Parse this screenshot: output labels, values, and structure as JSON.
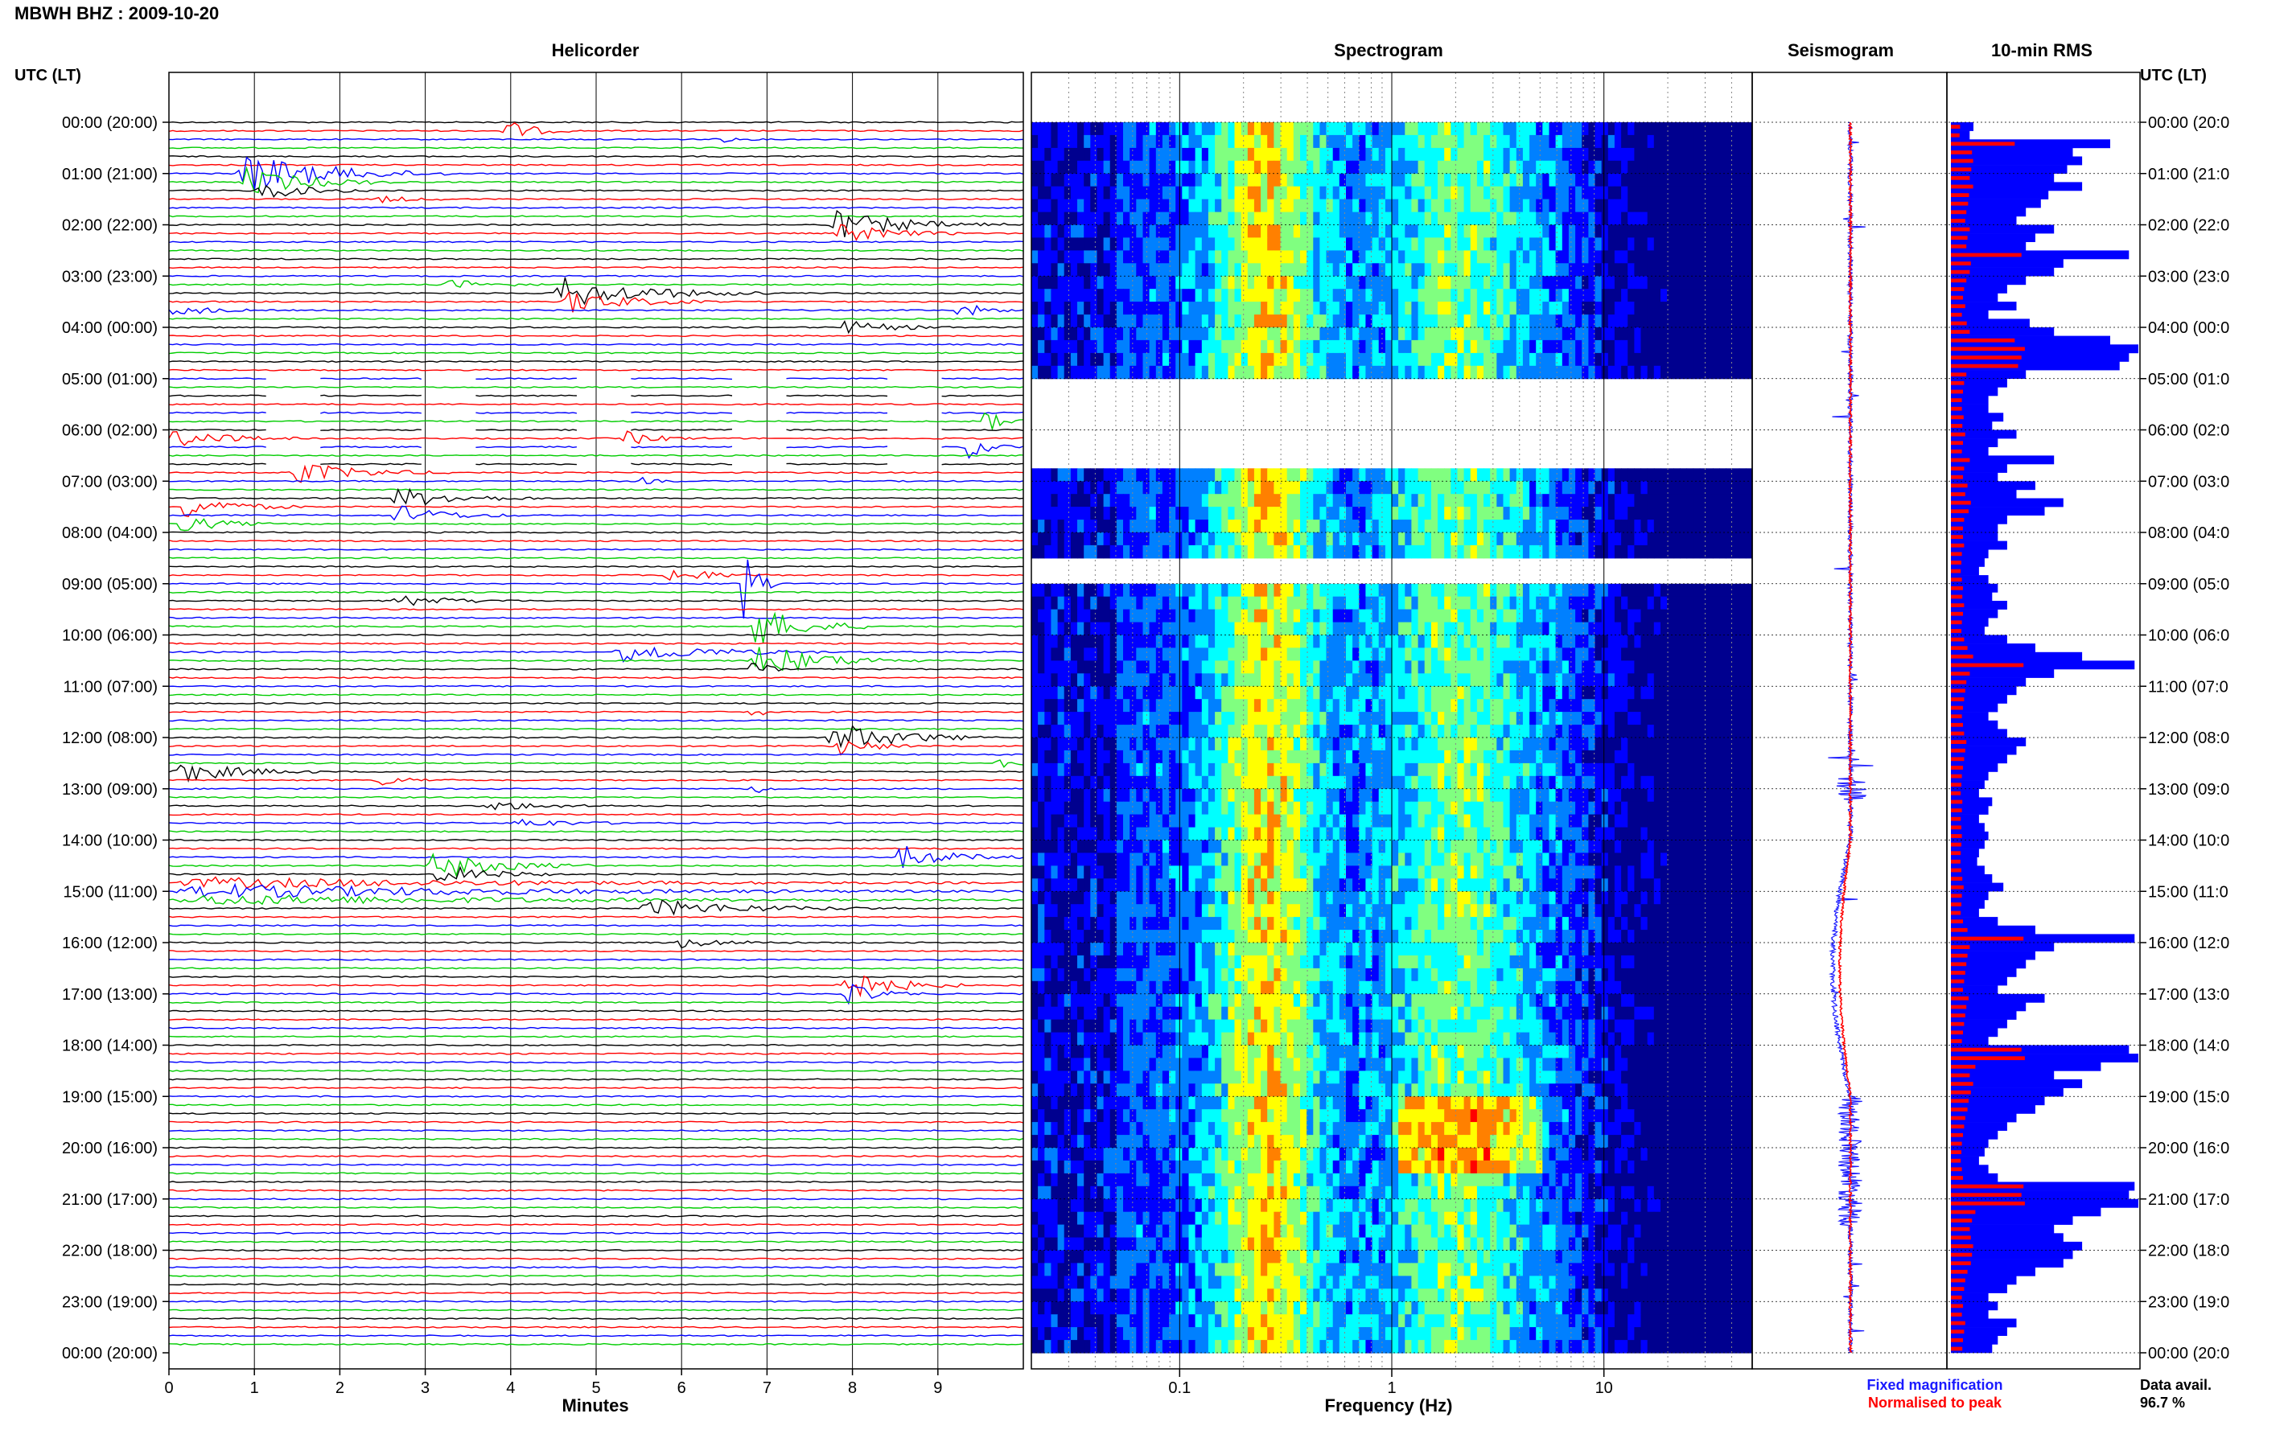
{
  "header": {
    "station_label": "MBWH BHZ : 2009-10-20",
    "utc_label": "UTC (LT)"
  },
  "panels": {
    "helicorder_title": "Helicorder",
    "spectrogram_title": "Spectrogram",
    "seismogram_title": "Seismogram",
    "rms_title": "10-min RMS"
  },
  "legend": {
    "fixed": "Fixed magnification",
    "normalised": "Normalised to peak",
    "fixed_color": "#1a1aff",
    "normalised_color": "#ff0000"
  },
  "data_avail": {
    "label": "Data avail.",
    "value": "96.7 %"
  },
  "chart_data": [
    {
      "type": "line",
      "panel": "helicorder",
      "xlabel": "Minutes",
      "x_ticks": [
        "0",
        "1",
        "2",
        "3",
        "4",
        "5",
        "6",
        "7",
        "8",
        "9"
      ],
      "xlim": [
        0,
        10
      ],
      "trace_colors": [
        "#000000",
        "#ff0000",
        "#0000ff",
        "#00cc00"
      ],
      "row_count": 144,
      "events": [
        {
          "row": 1,
          "min": 3.9,
          "amp": 3.5,
          "dur": 0.8
        },
        {
          "row": 2,
          "min": 6.4,
          "amp": 1.0,
          "dur": 0.5
        },
        {
          "row": 6,
          "min": 0.8,
          "amp": 6.0,
          "dur": 2.5
        },
        {
          "row": 7,
          "min": 0.8,
          "amp": 4.0,
          "dur": 2.0
        },
        {
          "row": 8,
          "min": 1.0,
          "amp": 2.5,
          "dur": 1.5
        },
        {
          "row": 9,
          "min": 2.4,
          "amp": 1.0,
          "dur": 1.0
        },
        {
          "row": 12,
          "min": 7.7,
          "amp": 4.0,
          "dur": 2.2
        },
        {
          "row": 13,
          "min": 7.8,
          "amp": 3.0,
          "dur": 1.5
        },
        {
          "row": 19,
          "min": 3.2,
          "amp": 1.5,
          "dur": 1.3
        },
        {
          "row": 20,
          "min": 4.5,
          "amp": 4.5,
          "dur": 2.5
        },
        {
          "row": 21,
          "min": 4.6,
          "amp": 3.5,
          "dur": 1.8
        },
        {
          "row": 22,
          "min": 0.0,
          "amp": 2.0,
          "dur": 1.0
        },
        {
          "row": 22,
          "min": 9.2,
          "amp": 2.5,
          "dur": 0.8
        },
        {
          "row": 24,
          "min": 7.8,
          "amp": 2.0,
          "dur": 1.5
        },
        {
          "row": 35,
          "min": 9.5,
          "amp": 3.5,
          "dur": 0.6
        },
        {
          "row": 37,
          "min": 0.0,
          "amp": 3.0,
          "dur": 1.5
        },
        {
          "row": 37,
          "min": 5.3,
          "amp": 2.0,
          "dur": 1.0
        },
        {
          "row": 38,
          "min": 9.3,
          "amp": 3.5,
          "dur": 0.7
        },
        {
          "row": 41,
          "min": 1.4,
          "amp": 3.0,
          "dur": 2.0
        },
        {
          "row": 42,
          "min": 5.5,
          "amp": 1.0,
          "dur": 0.5
        },
        {
          "row": 44,
          "min": 2.6,
          "amp": 3.0,
          "dur": 1.8
        },
        {
          "row": 45,
          "min": 0.1,
          "amp": 3.5,
          "dur": 1.5
        },
        {
          "row": 46,
          "min": 2.6,
          "amp": 3.0,
          "dur": 1.5
        },
        {
          "row": 47,
          "min": 0.1,
          "amp": 2.5,
          "dur": 1.2
        },
        {
          "row": 53,
          "min": 5.8,
          "amp": 2.5,
          "dur": 1.2
        },
        {
          "row": 54,
          "min": 6.7,
          "amp": 12.0,
          "dur": 0.4
        },
        {
          "row": 56,
          "min": 2.6,
          "amp": 2.0,
          "dur": 1.5
        },
        {
          "row": 59,
          "min": 6.8,
          "amp": 6.0,
          "dur": 1.5
        },
        {
          "row": 62,
          "min": 5.2,
          "amp": 3.0,
          "dur": 2.5
        },
        {
          "row": 63,
          "min": 6.8,
          "amp": 5.0,
          "dur": 2.0
        },
        {
          "row": 64,
          "min": 6.8,
          "amp": 4.0,
          "dur": 0.4
        },
        {
          "row": 69,
          "min": 6.8,
          "amp": 3.0,
          "dur": 0.3
        },
        {
          "row": 72,
          "min": 7.7,
          "amp": 4.5,
          "dur": 2.0
        },
        {
          "row": 73,
          "min": 7.8,
          "amp": 3.0,
          "dur": 1.0
        },
        {
          "row": 75,
          "min": 9.6,
          "amp": 3.0,
          "dur": 0.5
        },
        {
          "row": 76,
          "min": 0.0,
          "amp": 3.5,
          "dur": 1.8
        },
        {
          "row": 77,
          "min": 2.4,
          "amp": 1.5,
          "dur": 1.0
        },
        {
          "row": 78,
          "min": 6.8,
          "amp": 3.0,
          "dur": 0.3
        },
        {
          "row": 80,
          "min": 3.7,
          "amp": 1.5,
          "dur": 1.5
        },
        {
          "row": 82,
          "min": 4.0,
          "amp": 1.5,
          "dur": 1.5
        },
        {
          "row": 86,
          "min": 8.5,
          "amp": 3.5,
          "dur": 1.5
        },
        {
          "row": 87,
          "min": 3.0,
          "amp": 4.0,
          "dur": 2.0
        },
        {
          "row": 88,
          "min": 3.1,
          "amp": 3.0,
          "dur": 1.5
        },
        {
          "row": 89,
          "min": 0.0,
          "amp": 1.5,
          "dur": 10.0
        },
        {
          "row": 90,
          "min": 0.0,
          "amp": 2.0,
          "dur": 10.0
        },
        {
          "row": 91,
          "min": 0.0,
          "amp": 1.5,
          "dur": 10.0
        },
        {
          "row": 92,
          "min": 5.5,
          "amp": 2.5,
          "dur": 3.0
        },
        {
          "row": 96,
          "min": 5.9,
          "amp": 1.5,
          "dur": 1.5
        },
        {
          "row": 101,
          "min": 7.8,
          "amp": 5.0,
          "dur": 1.5
        },
        {
          "row": 102,
          "min": 7.9,
          "amp": 3.0,
          "dur": 1.0
        }
      ]
    },
    {
      "type": "heatmap",
      "panel": "spectrogram",
      "xlabel": "Frequency (Hz)",
      "x_scale": "log",
      "xlim": [
        0.02,
        50
      ],
      "x_tick_labels": [
        "0.1",
        "1",
        "10"
      ],
      "colormap": [
        "#00008f",
        "#0000ff",
        "#0080ff",
        "#00ffff",
        "#80ff80",
        "#ffff00",
        "#ff8000",
        "#ff0000"
      ],
      "gaps_hours": [
        [
          5.0,
          6.7
        ],
        [
          8.4,
          8.6
        ],
        [
          8.75,
          9.0
        ]
      ]
    },
    {
      "type": "line",
      "panel": "seismogram",
      "series": [
        {
          "name": "Fixed magnification",
          "color": "#1a1aff"
        },
        {
          "name": "Normalised to peak",
          "color": "#ff0000"
        }
      ]
    },
    {
      "type": "bar",
      "panel": "10-min RMS",
      "orientation": "horizontal",
      "categories_hours": "0-24 in 10-min bins",
      "values": [
        0.12,
        0.1,
        0.85,
        0.65,
        0.7,
        0.62,
        0.55,
        0.7,
        0.52,
        0.48,
        0.4,
        0.35,
        0.55,
        0.45,
        0.4,
        0.95,
        0.6,
        0.55,
        0.4,
        0.3,
        0.25,
        0.35,
        0.2,
        0.42,
        0.55,
        0.85,
        1.0,
        0.95,
        0.9,
        0.4,
        0.3,
        0.25,
        0.2,
        0.2,
        0.28,
        0.22,
        0.35,
        0.25,
        0.2,
        0.55,
        0.3,
        0.25,
        0.45,
        0.35,
        0.6,
        0.5,
        0.3,
        0.25,
        0.25,
        0.3,
        0.2,
        0.18,
        0.15,
        0.2,
        0.25,
        0.22,
        0.3,
        0.25,
        0.2,
        0.18,
        0.3,
        0.45,
        0.7,
        0.98,
        0.55,
        0.4,
        0.35,
        0.3,
        0.25,
        0.2,
        0.25,
        0.3,
        0.4,
        0.35,
        0.3,
        0.25,
        0.2,
        0.18,
        0.15,
        0.22,
        0.2,
        0.15,
        0.18,
        0.2,
        0.18,
        0.15,
        0.14,
        0.18,
        0.22,
        0.28,
        0.2,
        0.18,
        0.15,
        0.25,
        0.45,
        0.98,
        0.55,
        0.45,
        0.4,
        0.35,
        0.3,
        0.25,
        0.5,
        0.4,
        0.35,
        0.3,
        0.25,
        0.2,
        0.95,
        1.0,
        0.8,
        0.55,
        0.7,
        0.6,
        0.5,
        0.45,
        0.35,
        0.3,
        0.25,
        0.2,
        0.18,
        0.15,
        0.2,
        0.25,
        0.98,
        0.95,
        1.0,
        0.8,
        0.65,
        0.55,
        0.6,
        0.7,
        0.65,
        0.6,
        0.45,
        0.35,
        0.3,
        0.2,
        0.25,
        0.2,
        0.35,
        0.3,
        0.25,
        0.22
      ]
    }
  ],
  "time_axis": {
    "labels": [
      "00:00 (20:00)",
      "01:00 (21:00)",
      "02:00 (22:00)",
      "03:00 (23:00)",
      "04:00 (00:00)",
      "05:00 (01:00)",
      "06:00 (02:00)",
      "07:00 (03:00)",
      "08:00 (04:00)",
      "09:00 (05:00)",
      "10:00 (06:00)",
      "11:00 (07:00)",
      "12:00 (08:00)",
      "13:00 (09:00)",
      "14:00 (10:00)",
      "15:00 (11:00)",
      "16:00 (12:00)",
      "17:00 (13:00)",
      "18:00 (14:00)",
      "19:00 (15:00)",
      "20:00 (16:00)",
      "21:00 (17:00)",
      "22:00 (18:00)",
      "23:00 (19:00)",
      "00:00 (20:00)"
    ],
    "right_labels": [
      "00:00 (20:0",
      "01:00 (21:0",
      "02:00 (22:0",
      "03:00 (23:0",
      "04:00 (00:0",
      "05:00 (01:0",
      "06:00 (02:0",
      "07:00 (03:0",
      "08:00 (04:0",
      "09:00 (05:0",
      "10:00 (06:0",
      "11:00 (07:0",
      "12:00 (08:0",
      "13:00 (09:0",
      "14:00 (10:0",
      "15:00 (11:0",
      "16:00 (12:0",
      "17:00 (13:0",
      "18:00 (14:0",
      "19:00 (15:0",
      "20:00 (16:0",
      "21:00 (17:0",
      "22:00 (18:0",
      "23:00 (19:0",
      "00:00 (20:0"
    ]
  }
}
